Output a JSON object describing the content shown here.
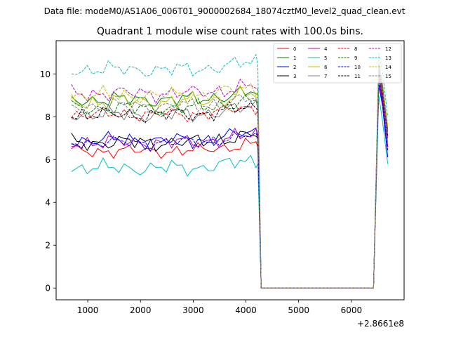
{
  "file_label": "Data file: modeM0/AS1A06_006T01_9000002684_18074cztM0_level2_quad_clean.evt",
  "chart_data": {
    "type": "line",
    "title": "Quadrant 1 module wise count rates with 100.0s bins.",
    "xlabel": "",
    "ylabel": "",
    "x_offset_label": "+2.8661e8",
    "xlim": [
      400,
      7000
    ],
    "ylim": [
      -0.55,
      11.55
    ],
    "xticks": [
      1000,
      2000,
      3000,
      4000,
      5000,
      6000
    ],
    "xtick_labels": [
      "1000",
      "2000",
      "3000",
      "4000",
      "5000",
      "6000"
    ],
    "yticks": [
      0,
      2,
      4,
      6,
      8,
      10
    ],
    "ytick_labels": [
      "0",
      "2",
      "4",
      "6",
      "8",
      "10"
    ],
    "legend_position": "top-right",
    "legend_ncol": 4,
    "active_x_start": 690,
    "active_x_step": 100,
    "active_count": 36,
    "gap_edges_x": [
      4225,
      4290,
      6350,
      6420
    ],
    "end_x": [
      6520,
      6590,
      6690
    ],
    "series": [
      {
        "name": "0",
        "color": "#ff0000",
        "dash": false,
        "base": 6.4,
        "amp": 0.25,
        "phase": 0.0,
        "end": [
          9.4,
          8.8,
          7.0
        ]
      },
      {
        "name": "1",
        "color": "#008000",
        "dash": false,
        "base": 8.8,
        "amp": 0.3,
        "phase": 1.1,
        "end": [
          10.3,
          9.5,
          7.4
        ]
      },
      {
        "name": "2",
        "color": "#0000ff",
        "dash": false,
        "base": 6.9,
        "amp": 0.3,
        "phase": 2.2,
        "end": [
          9.5,
          8.5,
          6.1
        ]
      },
      {
        "name": "3",
        "color": "#000000",
        "dash": false,
        "base": 6.8,
        "amp": 0.3,
        "phase": 0.5,
        "end": [
          10.1,
          8.8,
          6.6
        ]
      },
      {
        "name": "4",
        "color": "#bf00bf",
        "dash": false,
        "base": 6.8,
        "amp": 0.3,
        "phase": 1.7,
        "end": [
          10.0,
          8.6,
          6.6
        ]
      },
      {
        "name": "5",
        "color": "#00bfbf",
        "dash": false,
        "base": 5.6,
        "amp": 0.3,
        "phase": 2.8,
        "end": [
          9.0,
          7.8,
          5.8
        ]
      },
      {
        "name": "6",
        "color": "#bfbf00",
        "dash": false,
        "base": 8.7,
        "amp": 0.35,
        "phase": 0.9,
        "end": [
          10.2,
          9.3,
          7.3
        ]
      },
      {
        "name": "7",
        "color": "#808080",
        "dash": false,
        "base": 8.1,
        "amp": 0.3,
        "phase": 2.0,
        "end": [
          10.4,
          9.1,
          6.8
        ]
      },
      {
        "name": "8",
        "color": "#ff0000",
        "dash": true,
        "base": 8.1,
        "amp": 0.25,
        "phase": 3.1,
        "end": [
          9.8,
          9.0,
          7.1
        ]
      },
      {
        "name": "9",
        "color": "#008000",
        "dash": true,
        "base": 8.4,
        "amp": 0.3,
        "phase": 0.3,
        "end": [
          10.0,
          9.2,
          7.4
        ]
      },
      {
        "name": "10",
        "color": "#0000ff",
        "dash": true,
        "base": 6.8,
        "amp": 0.25,
        "phase": 1.4,
        "end": [
          9.7,
          8.7,
          6.4
        ]
      },
      {
        "name": "11",
        "color": "#000000",
        "dash": true,
        "base": 8.1,
        "amp": 0.3,
        "phase": 2.5,
        "end": [
          10.5,
          9.2,
          7.1
        ]
      },
      {
        "name": "12",
        "color": "#bf00bf",
        "dash": true,
        "base": 9.1,
        "amp": 0.3,
        "phase": 0.7,
        "end": [
          10.4,
          9.4,
          7.3
        ]
      },
      {
        "name": "13",
        "color": "#00bfbf",
        "dash": true,
        "base": 10.2,
        "amp": 0.3,
        "phase": 1.9,
        "end": [
          11.0,
          10.1,
          8.0
        ]
      },
      {
        "name": "14",
        "color": "#bfbf00",
        "dash": true,
        "base": 9.0,
        "amp": 0.3,
        "phase": 2.9,
        "end": [
          10.6,
          9.6,
          7.6
        ]
      },
      {
        "name": "15",
        "color": "#808080",
        "dash": true,
        "base": 8.5,
        "amp": 0.3,
        "phase": 1.2,
        "end": [
          10.2,
          9.3,
          7.2
        ]
      }
    ]
  }
}
